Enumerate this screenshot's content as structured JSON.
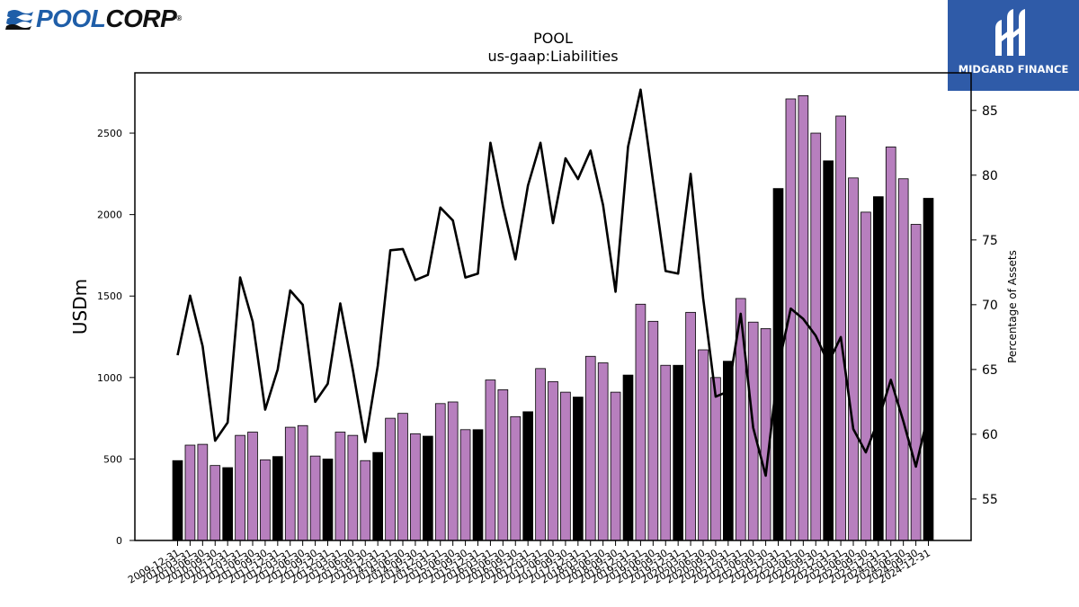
{
  "logo": {
    "text_pool": "POOL",
    "text_corp": "CORP",
    "icon": "wave-stripes-icon"
  },
  "brand": {
    "name": "MIDGARD FINANCE",
    "icon": "midgard-m-logo-icon",
    "color": "#2f5ba8"
  },
  "chart_data": {
    "type": "bar",
    "title": "POOL",
    "subtitle": "us-gaap:Liabilities",
    "ylabel": "USDm",
    "y2label": "Percentage of Assets",
    "ylim": [
      0,
      2870
    ],
    "y2lim": [
      51.8,
      87.9
    ],
    "yticks": [
      0,
      500,
      1000,
      1500,
      2000,
      2500
    ],
    "y2ticks": [
      55,
      60,
      65,
      70,
      75,
      80,
      85
    ],
    "categories": [
      "2009-12-31",
      "2010-03-31",
      "2010-06-30",
      "2010-09-30",
      "2010-12-31",
      "2011-03-31",
      "2011-06-30",
      "2011-09-30",
      "2011-12-31",
      "2012-03-31",
      "2012-06-30",
      "2012-09-30",
      "2012-12-31",
      "2013-03-31",
      "2013-06-30",
      "2013-09-30",
      "2013-12-31",
      "2014-03-31",
      "2014-06-30",
      "2014-09-30",
      "2014-12-31",
      "2015-03-31",
      "2015-06-30",
      "2015-09-30",
      "2015-12-31",
      "2016-03-31",
      "2016-06-30",
      "2016-09-30",
      "2016-12-31",
      "2017-03-31",
      "2017-06-30",
      "2017-09-30",
      "2017-12-31",
      "2018-03-31",
      "2018-06-30",
      "2018-09-30",
      "2018-12-31",
      "2019-03-31",
      "2019-06-30",
      "2019-09-30",
      "2019-12-31",
      "2020-03-31",
      "2020-06-30",
      "2020-09-30",
      "2020-12-31",
      "2021-03-31",
      "2021-06-30",
      "2021-09-30",
      "2021-12-31",
      "2022-03-31",
      "2022-06-30",
      "2022-09-30",
      "2022-12-31",
      "2023-03-31",
      "2023-06-30",
      "2023-09-30",
      "2023-12-31",
      "2024-03-31",
      "2024-06-30",
      "2024-09-30",
      "2024-12-31"
    ],
    "series": [
      {
        "values": [
          490,
          585,
          590,
          460,
          447,
          645,
          665,
          495,
          515,
          695,
          705,
          518,
          500,
          665,
          645,
          490,
          540,
          750,
          780,
          655,
          640,
          840,
          850,
          680,
          680,
          985,
          925,
          760,
          790,
          1055,
          975,
          910,
          880,
          1130,
          1090,
          910,
          1015,
          1450,
          1345,
          1075,
          1075,
          1400,
          1170,
          1000,
          1100,
          1485,
          1340,
          1300,
          2160,
          2710,
          2730,
          2500,
          2330,
          2605,
          2225,
          2015,
          2110,
          2415,
          2220,
          1940,
          2100
        ]
      },
      {
        "axis": "y2",
        "values": [
          66.1,
          70.7,
          66.8,
          59.5,
          60.9,
          72.1,
          68.7,
          61.9,
          65.0,
          71.1,
          70.0,
          62.5,
          63.9,
          70.1,
          65.0,
          59.4,
          65.3,
          74.2,
          74.3,
          71.9,
          72.3,
          77.5,
          76.5,
          72.1,
          72.4,
          82.5,
          77.6,
          73.5,
          79.2,
          82.5,
          76.3,
          81.3,
          79.7,
          81.9,
          77.7,
          71.0,
          82.2,
          86.6,
          79.5,
          72.6,
          72.4,
          80.1,
          70.5,
          62.9,
          63.3,
          69.3,
          60.5,
          56.8,
          65.2,
          69.7,
          68.9,
          67.6,
          65.5,
          67.5,
          60.4,
          58.6,
          61.1,
          64.2,
          61.0,
          57.5,
          61.6
        ]
      }
    ],
    "colors": {
      "bar_year_end": "#000000",
      "bar_quarter": "#b77fbe",
      "line": "#000000"
    },
    "grid": false
  }
}
